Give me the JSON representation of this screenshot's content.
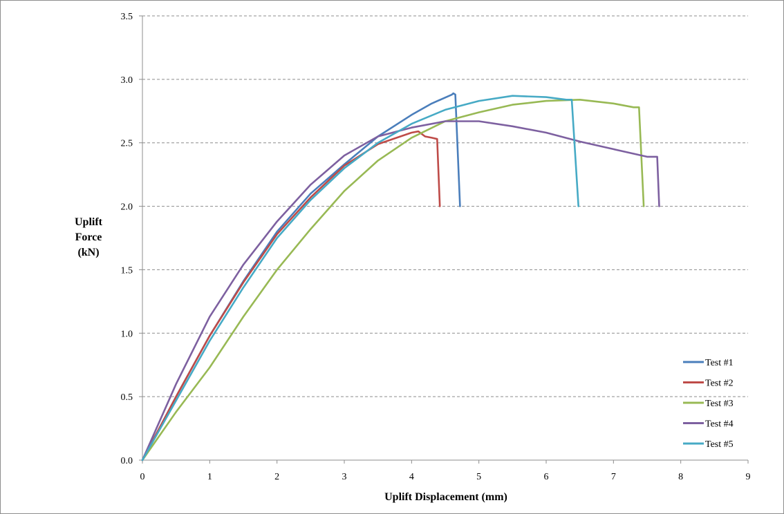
{
  "chart_data": {
    "type": "line",
    "xlabel": "Uplift Displacement (mm)",
    "ylabel_lines": [
      "Uplift",
      "Force",
      "(kN)"
    ],
    "xlim": [
      0,
      9
    ],
    "ylim": [
      0,
      3.5
    ],
    "x_ticks": [
      0,
      1,
      2,
      3,
      4,
      5,
      6,
      7,
      8,
      9
    ],
    "y_ticks": [
      0.0,
      0.5,
      1.0,
      1.5,
      2.0,
      2.5,
      3.0,
      3.5
    ],
    "x_tick_labels": [
      "0",
      "1",
      "2",
      "3",
      "4",
      "5",
      "6",
      "7",
      "8",
      "9"
    ],
    "y_tick_labels": [
      "0.0",
      "0.5",
      "1.0",
      "1.5",
      "2.0",
      "2.5",
      "3.0",
      "3.5"
    ],
    "grid": "horizontal dashed",
    "legend_position": "lower-right",
    "series": [
      {
        "name": "Test #1",
        "color": "#4a7ebb",
        "points": [
          [
            0,
            0
          ],
          [
            0.5,
            0.5
          ],
          [
            1,
            0.98
          ],
          [
            1.5,
            1.41
          ],
          [
            2,
            1.8
          ],
          [
            2.5,
            2.1
          ],
          [
            3,
            2.33
          ],
          [
            3.5,
            2.55
          ],
          [
            4,
            2.72
          ],
          [
            4.3,
            2.81
          ],
          [
            4.6,
            2.88
          ],
          [
            4.62,
            2.89
          ],
          [
            4.65,
            2.88
          ],
          [
            4.72,
            2.0
          ]
        ]
      },
      {
        "name": "Test #2",
        "color": "#be4b48",
        "points": [
          [
            0,
            0
          ],
          [
            0.5,
            0.5
          ],
          [
            1,
            0.98
          ],
          [
            1.5,
            1.4
          ],
          [
            2,
            1.78
          ],
          [
            2.5,
            2.07
          ],
          [
            3,
            2.32
          ],
          [
            3.5,
            2.49
          ],
          [
            4.0,
            2.58
          ],
          [
            4.1,
            2.59
          ],
          [
            4.2,
            2.55
          ],
          [
            4.3,
            2.54
          ],
          [
            4.38,
            2.53
          ],
          [
            4.42,
            2.0
          ]
        ]
      },
      {
        "name": "Test #3",
        "color": "#98b954",
        "points": [
          [
            0,
            0
          ],
          [
            0.5,
            0.38
          ],
          [
            1,
            0.73
          ],
          [
            1.5,
            1.13
          ],
          [
            2,
            1.5
          ],
          [
            2.5,
            1.82
          ],
          [
            3,
            2.12
          ],
          [
            3.5,
            2.36
          ],
          [
            4,
            2.54
          ],
          [
            4.5,
            2.67
          ],
          [
            5,
            2.74
          ],
          [
            5.5,
            2.8
          ],
          [
            6,
            2.83
          ],
          [
            6.5,
            2.84
          ],
          [
            7,
            2.81
          ],
          [
            7.3,
            2.78
          ],
          [
            7.38,
            2.78
          ],
          [
            7.45,
            2.0
          ]
        ]
      },
      {
        "name": "Test #4",
        "color": "#7d60a0",
        "points": [
          [
            0,
            0
          ],
          [
            0.5,
            0.6
          ],
          [
            1,
            1.13
          ],
          [
            1.5,
            1.54
          ],
          [
            2,
            1.88
          ],
          [
            2.5,
            2.17
          ],
          [
            3,
            2.4
          ],
          [
            3.5,
            2.55
          ],
          [
            4,
            2.62
          ],
          [
            4.5,
            2.67
          ],
          [
            5,
            2.67
          ],
          [
            5.5,
            2.63
          ],
          [
            6,
            2.58
          ],
          [
            6.5,
            2.51
          ],
          [
            7,
            2.45
          ],
          [
            7.5,
            2.39
          ],
          [
            7.65,
            2.39
          ],
          [
            7.68,
            2.0
          ]
        ]
      },
      {
        "name": "Test #5",
        "color": "#46aac5",
        "points": [
          [
            0,
            0
          ],
          [
            0.5,
            0.47
          ],
          [
            1,
            0.94
          ],
          [
            1.5,
            1.36
          ],
          [
            2,
            1.75
          ],
          [
            2.5,
            2.05
          ],
          [
            3,
            2.3
          ],
          [
            3.5,
            2.5
          ],
          [
            4,
            2.65
          ],
          [
            4.5,
            2.76
          ],
          [
            5,
            2.83
          ],
          [
            5.5,
            2.87
          ],
          [
            6,
            2.86
          ],
          [
            6.3,
            2.84
          ],
          [
            6.38,
            2.84
          ],
          [
            6.48,
            2.0
          ]
        ]
      }
    ]
  }
}
